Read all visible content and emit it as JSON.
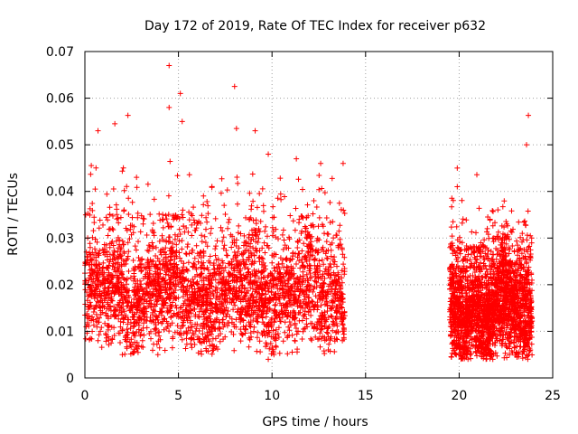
{
  "chart_data": {
    "type": "scatter",
    "title": "Day 172 of 2019, Rate Of TEC Index for receiver p632",
    "xlabel": "GPS time / hours",
    "ylabel": "ROTI / TECUs",
    "xlim": [
      0,
      25
    ],
    "ylim": [
      0,
      0.07
    ],
    "x_ticks": [
      0,
      5,
      10,
      15,
      20,
      25
    ],
    "x_tick_labels": [
      "0",
      "5",
      "10",
      "15",
      "20",
      "25"
    ],
    "y_ticks": [
      0,
      0.01,
      0.02,
      0.03,
      0.04,
      0.05,
      0.06,
      0.07
    ],
    "y_tick_labels": [
      "0",
      "0.01",
      "0.02",
      "0.03",
      "0.04",
      "0.05",
      "0.06",
      "0.07"
    ],
    "grid": true,
    "marker": "+",
    "series_color": "#ff0000",
    "data_segments": [
      {
        "x_start": 0.0,
        "x_end": 13.9,
        "typical_low": 0.008,
        "typical_high": 0.035,
        "median": 0.018
      },
      {
        "x_start": 19.5,
        "x_end": 23.9,
        "typical_low": 0.007,
        "typical_high": 0.028,
        "median": 0.015
      }
    ],
    "notable_points": [
      {
        "x": 4.5,
        "y": 0.067
      },
      {
        "x": 4.5,
        "y": 0.058
      },
      {
        "x": 5.1,
        "y": 0.061
      },
      {
        "x": 8.0,
        "y": 0.0625
      },
      {
        "x": 5.2,
        "y": 0.055
      },
      {
        "x": 23.7,
        "y": 0.0563
      },
      {
        "x": 2.3,
        "y": 0.0563
      },
      {
        "x": 1.6,
        "y": 0.0545
      },
      {
        "x": 0.7,
        "y": 0.053
      },
      {
        "x": 9.1,
        "y": 0.053
      },
      {
        "x": 8.1,
        "y": 0.0535
      },
      {
        "x": 23.6,
        "y": 0.05
      },
      {
        "x": 19.9,
        "y": 0.045
      },
      {
        "x": 19.9,
        "y": 0.041
      },
      {
        "x": 13.8,
        "y": 0.046
      },
      {
        "x": 9.8,
        "y": 0.048
      },
      {
        "x": 11.3,
        "y": 0.047
      },
      {
        "x": 12.6,
        "y": 0.046
      },
      {
        "x": 2.0,
        "y": 0.005
      },
      {
        "x": 9.8,
        "y": 0.004
      },
      {
        "x": 21.8,
        "y": 0.004
      },
      {
        "x": 3.9,
        "y": 0.005
      },
      {
        "x": 10.1,
        "y": 0.005
      }
    ]
  }
}
